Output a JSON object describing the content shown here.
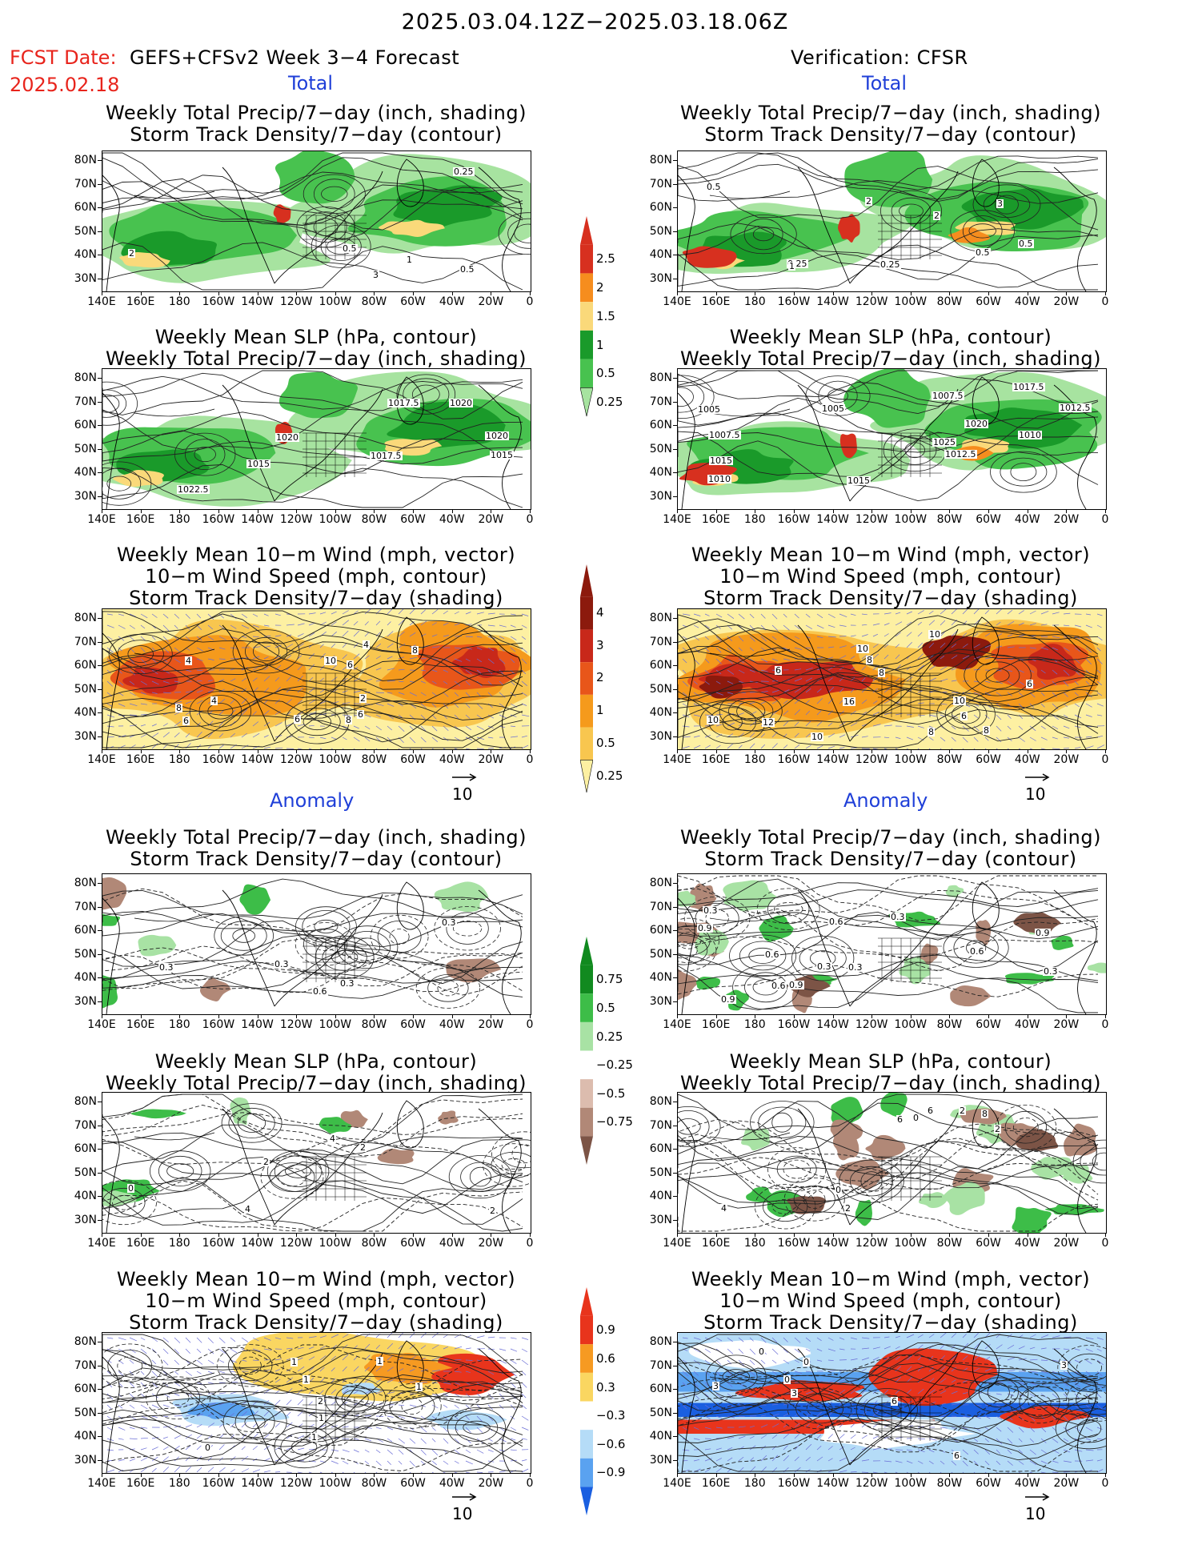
{
  "header": {
    "period": "2025.03.04.12Z−2025.03.18.06Z",
    "fcst_date_label": "FCST Date:",
    "fcst_model": "GEFS+CFSv2 Week 3−4 Forecast",
    "fcst_date": "2025.02.18",
    "verification": "Verification: CFSR"
  },
  "sections": {
    "total": "Total",
    "anomaly": "Anomaly"
  },
  "panel_titles": {
    "precip_storm": [
      "Weekly Total Precip/7−day (inch, shading)",
      "Storm Track Density/7−day (contour)"
    ],
    "slp_precip": [
      "Weekly Mean SLP (hPa, contour)",
      "Weekly Total Precip/7−day (inch, shading)"
    ],
    "wind_storm": [
      "Weekly Mean 10−m Wind (mph, vector)",
      "10−m Wind Speed (mph, contour)",
      "Storm Track Density/7−day (shading)"
    ]
  },
  "axes": {
    "lat_labels": [
      "80N",
      "70N",
      "60N",
      "50N",
      "40N",
      "30N"
    ],
    "lon_labels": [
      "140E",
      "160E",
      "180",
      "160W",
      "140W",
      "120W",
      "100W",
      "80W",
      "60W",
      "40W",
      "20W",
      "0"
    ]
  },
  "vector_reference": "10",
  "colorbars": {
    "precip": {
      "labels": [
        "2.5",
        "2",
        "1.5",
        "1",
        "0.5",
        "0.25"
      ],
      "colors": [
        "#d7301f",
        "#f68d1e",
        "#fad97a",
        "#1a9a2a",
        "#48c24f",
        "#a7e3a0"
      ]
    },
    "storm": {
      "labels": [
        "4",
        "3",
        "2",
        "1",
        "0.5",
        "0.25"
      ],
      "colors": [
        "#8c1a0d",
        "#c8281a",
        "#e8561a",
        "#f59a1c",
        "#f8c64f",
        "#fdf0a2"
      ]
    },
    "precip_anom": {
      "labels": [
        "0.75",
        "0.5",
        "0.25",
        "−0.25",
        "−0.5",
        "−0.75"
      ],
      "colors": [
        "#118a1f",
        "#3dbd48",
        "#a8e2a4",
        "#ffffff",
        "#dcbcae",
        "#b18877",
        "#7c5446"
      ]
    },
    "storm_anom": {
      "labels": [
        "0.9",
        "0.6",
        "0.3",
        "−0.3",
        "−0.6",
        "−0.9"
      ],
      "colors": [
        "#e8341c",
        "#f69a22",
        "#fad661",
        "#ffffff",
        "#b5dcf7",
        "#5aa2f0",
        "#1a5fe0"
      ]
    }
  },
  "contour_labels": {
    "p1l": [
      "1",
      "0.5",
      "3",
      "2",
      "0.5",
      "0.25"
    ],
    "p1r": [
      "2",
      "0.5",
      "0.5",
      "0.25",
      "3",
      "2",
      "1",
      "0.5",
      "0.25"
    ],
    "p2l": [
      "1017.5",
      "1022.5",
      "1015",
      "1017.5",
      "1020",
      "1015",
      "1020",
      "1020"
    ],
    "p2r": [
      "1025",
      "1020",
      "1017.5",
      "1015",
      "1012.5",
      "1005",
      "1007.5",
      "1012.5",
      "1015",
      "1010",
      "1010",
      "1005",
      "1007.5"
    ],
    "p3l": [
      "4",
      "6",
      "8",
      "2",
      "6",
      "4",
      "4",
      "8",
      "6",
      "8",
      "10",
      "6"
    ],
    "p3r": [
      "10",
      "12",
      "10",
      "8",
      "8",
      "6",
      "10",
      "8",
      "10",
      "10",
      "16",
      "6",
      "8",
      "6"
    ],
    "p4l": [
      "0.3",
      "0.3",
      "0.3",
      "0.6",
      "0.3"
    ],
    "p4r": [
      "0.6",
      "0.9",
      "0.3",
      "0.6",
      "0.9",
      "0.3",
      "0.9",
      "0.6",
      "0.3",
      "0.3",
      "0.3",
      "0.9",
      "0.6"
    ],
    "p5l": [
      "4",
      "2",
      "2",
      "0",
      "4",
      "2"
    ],
    "p5r": [
      "0",
      "2",
      "6",
      "2",
      "4",
      "0",
      "8",
      "6",
      "2"
    ],
    "p6l": [
      "1",
      "1",
      "1",
      "1",
      "0",
      "1",
      "2",
      "1"
    ],
    "p6r": [
      "3",
      "6",
      "3",
      "0",
      "6",
      "0",
      "3",
      "0"
    ]
  }
}
